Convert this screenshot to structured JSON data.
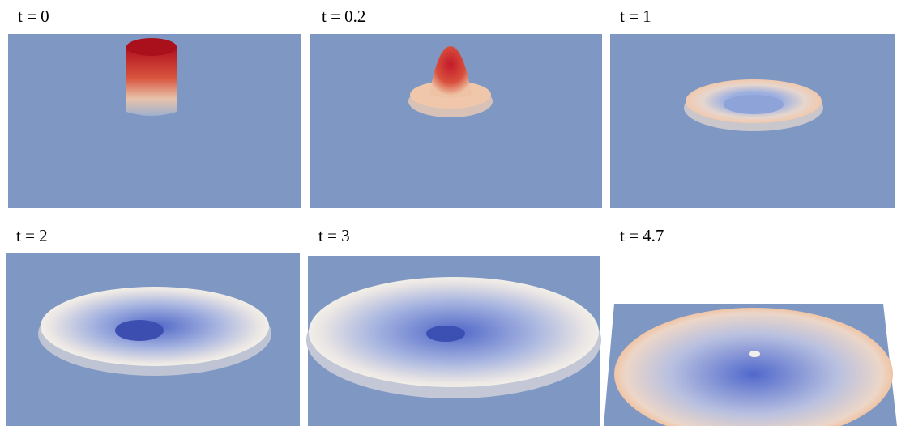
{
  "panels": [
    {
      "label": "t = 0"
    },
    {
      "label": "t = 0.2"
    },
    {
      "label": "t = 1"
    },
    {
      "label": "t = 2"
    },
    {
      "label": "t = 3"
    },
    {
      "label": "t = 4.7"
    }
  ]
}
